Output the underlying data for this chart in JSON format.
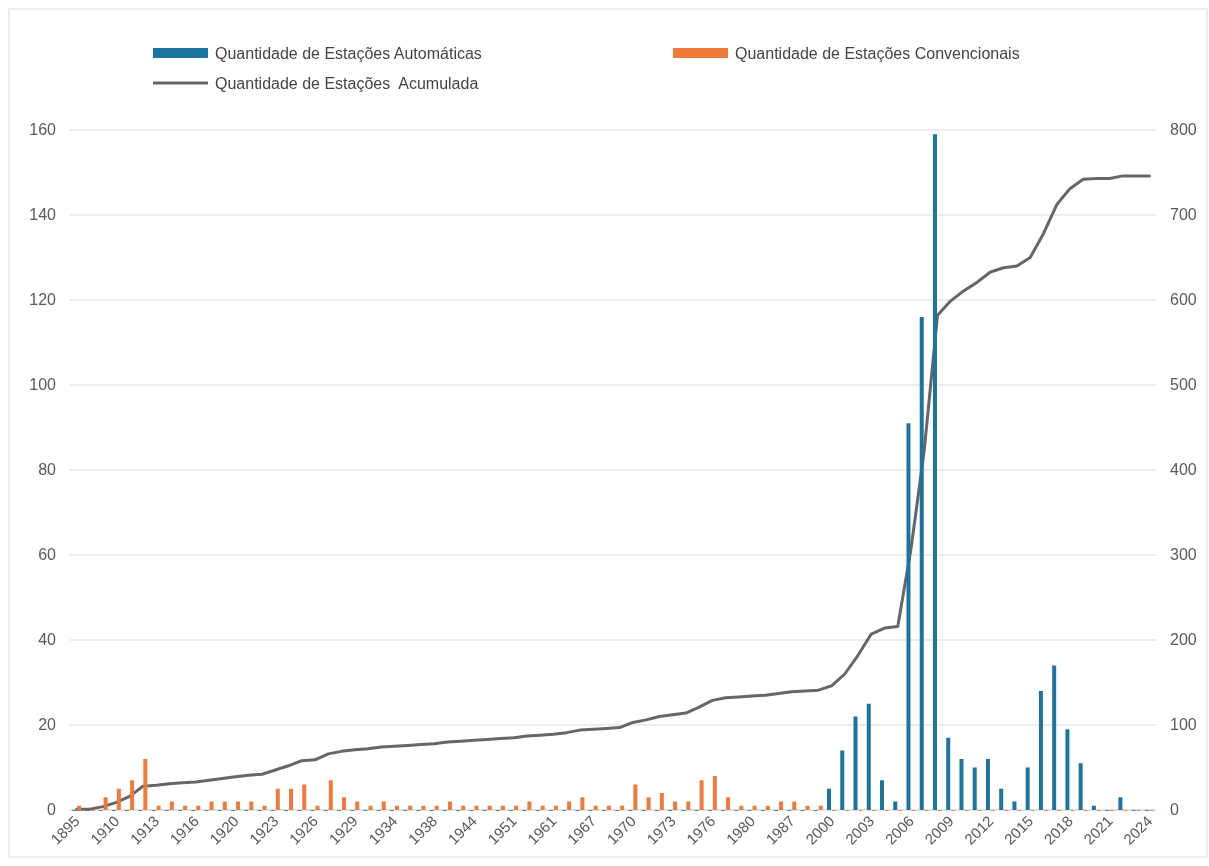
{
  "chart_data": {
    "type": "bar",
    "categories": [
      "1895",
      null,
      null,
      "1910",
      null,
      null,
      "1913",
      null,
      null,
      "1916",
      null,
      null,
      "1920",
      null,
      null,
      "1923",
      null,
      null,
      "1926",
      null,
      null,
      "1929",
      null,
      null,
      "1934",
      null,
      null,
      "1938",
      null,
      null,
      "1944",
      null,
      null,
      "1951",
      null,
      null,
      "1961",
      null,
      null,
      "1967",
      null,
      null,
      "1970",
      null,
      null,
      "1973",
      null,
      null,
      "1976",
      null,
      null,
      "1980",
      null,
      null,
      "1987",
      null,
      null,
      "2000",
      null,
      null,
      "2003",
      null,
      null,
      "2006",
      null,
      null,
      "2009",
      null,
      null,
      "2012",
      null,
      null,
      "2015",
      null,
      null,
      "2018",
      null,
      null,
      "2021",
      null,
      null,
      "2024"
    ],
    "series": [
      {
        "name": "Quantidade de Estações Automáticas",
        "color": "#1b75a0",
        "values": [
          0,
          0,
          0,
          0,
          0,
          0,
          0,
          0,
          0,
          0,
          0,
          0,
          0,
          0,
          0,
          0,
          0,
          0,
          0,
          0,
          0,
          0,
          0,
          0,
          0,
          0,
          0,
          0,
          0,
          0,
          0,
          0,
          0,
          0,
          0,
          0,
          0,
          0,
          0,
          0,
          0,
          0,
          0,
          0,
          0,
          0,
          0,
          0,
          0,
          0,
          0,
          0,
          0,
          0,
          0,
          0,
          0,
          5,
          14,
          22,
          25,
          7,
          2,
          91,
          116,
          159,
          17,
          12,
          10,
          12,
          5,
          2,
          10,
          28,
          34,
          19,
          11,
          1,
          0,
          3,
          0,
          0
        ]
      },
      {
        "name": "Quantidade de Estações Convencionais",
        "color": "#f07a3c",
        "values": [
          1,
          0,
          3,
          5,
          7,
          12,
          1,
          2,
          1,
          1,
          2,
          2,
          2,
          2,
          1,
          5,
          5,
          6,
          1,
          7,
          3,
          2,
          1,
          2,
          1,
          1,
          1,
          1,
          2,
          1,
          1,
          1,
          1,
          1,
          2,
          1,
          1,
          2,
          3,
          1,
          1,
          1,
          6,
          3,
          4,
          2,
          2,
          7,
          8,
          3,
          1,
          1,
          1,
          2,
          2,
          1,
          1,
          0,
          0,
          0,
          0,
          0,
          0,
          0,
          0,
          0,
          0,
          0,
          0,
          0,
          0,
          0,
          0,
          0,
          0,
          0,
          0,
          0,
          0,
          0,
          0,
          0
        ]
      },
      {
        "name": "Quantidade de Estações  Acumulada",
        "type": "line",
        "axis": "y2",
        "color": "#666666",
        "values": [
          1,
          1,
          4,
          9,
          16,
          28,
          29,
          31,
          32,
          33,
          35,
          37,
          39,
          41,
          42,
          47,
          52,
          58,
          59,
          66,
          69,
          71,
          72,
          74,
          75,
          76,
          77,
          78,
          80,
          81,
          82,
          83,
          84,
          85,
          87,
          88,
          89,
          91,
          94,
          95,
          96,
          97,
          103,
          106,
          110,
          112,
          114,
          121,
          129,
          132,
          133,
          134,
          135,
          137,
          139,
          140,
          141,
          146,
          160,
          182,
          207,
          214,
          216,
          307,
          423,
          582,
          599,
          611,
          621,
          633,
          638,
          640,
          650,
          678,
          712,
          731,
          742,
          743,
          743,
          746,
          746,
          746
        ]
      }
    ],
    "ylim": [
      0,
      160
    ],
    "yticks": [
      0,
      20,
      40,
      60,
      80,
      100,
      120,
      140,
      160
    ],
    "y2lim": [
      0,
      800
    ],
    "y2ticks": [
      0,
      100,
      200,
      300,
      400,
      500,
      600,
      700,
      800
    ],
    "grid": "y",
    "legend": "top",
    "marker": "none",
    "line_style": "solid"
  }
}
